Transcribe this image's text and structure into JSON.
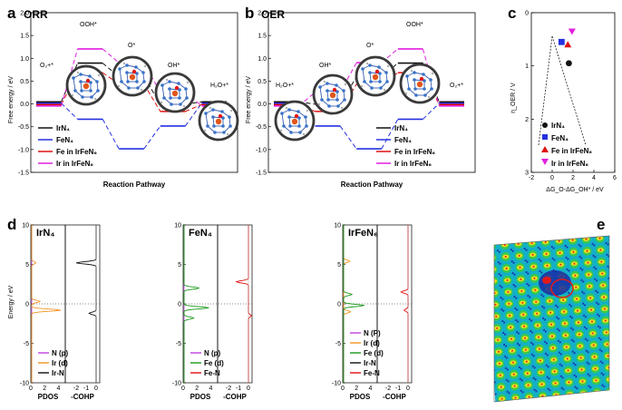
{
  "colors": {
    "black": "#111111",
    "blue": "#2430e0",
    "red": "#e01010",
    "magenta": "#e020e0",
    "green": "#1a9a1a",
    "orange": "#f29322",
    "violet": "#c040e0",
    "map_bg": "#13b0c8",
    "map_green": "#39c94a",
    "map_yellow": "#f0e020",
    "map_dark": "#1a2aa8",
    "map_red": "#e01a1a"
  },
  "panel_a": {
    "letter": "a",
    "title": "ORR",
    "xlabel": "Reaction Pathway",
    "ylabel": "Free energy / eV",
    "states": [
      "O₂+*",
      "OOH*",
      "O*",
      "OH*",
      "H₂O+*"
    ],
    "legend": [
      "IrN₄",
      "FeN₄",
      "Fe in IrFeN₆",
      "Ir in IrFeN₆"
    ],
    "legend_colors": [
      "#111111",
      "#2430e0",
      "#e01010",
      "#e020e0"
    ],
    "molecule_icons": [
      "molecule-structure-icon",
      "molecule-structure-icon",
      "molecule-structure-icon",
      "molecule-structure-icon"
    ]
  },
  "panel_b": {
    "letter": "b",
    "title": "OER",
    "xlabel": "Reaction Pathway",
    "ylabel": "Free energy / eV",
    "states": [
      "H₂O+*",
      "OH*",
      "O*",
      "OOH*",
      "O₂+*"
    ],
    "legend": [
      "IrN₄",
      "FeN₄",
      "Fe in IrFeN₆",
      "Ir in IrFeN₆"
    ],
    "legend_colors": [
      "#111111",
      "#2430e0",
      "#e01010",
      "#e020e0"
    ],
    "molecule_icons": [
      "molecule-structure-icon",
      "molecule-structure-icon",
      "molecule-structure-icon",
      "molecule-structure-icon"
    ]
  },
  "panel_c": {
    "letter": "c",
    "xlabel": "ΔG_O-ΔG_OH* / eV",
    "ylabel": "η_OER / V",
    "legend": [
      "IrN₄",
      "FeN₄",
      "Fe in IrFeN₆",
      "Ir in IrFeN₆"
    ],
    "legend_markers": [
      "circle",
      "square",
      "triangle-up",
      "triangle-down"
    ],
    "legend_colors": [
      "#111111",
      "#2430e0",
      "#e01010",
      "#e020e0"
    ]
  },
  "panel_d": {
    "letter": "d",
    "ylabel": "Energy / eV",
    "subpanels": [
      {
        "title": "IrN₄",
        "legend": [
          "N (p)",
          "Ir (d)",
          "Ir-N"
        ],
        "legend_colors": [
          "#c040e0",
          "#f29322",
          "#111111"
        ],
        "pdos_label": "PDOS",
        "cohp_label": "-COHP"
      },
      {
        "title": "FeN₄",
        "legend": [
          "N (p)",
          "Fe (d)",
          "Fe-N"
        ],
        "legend_colors": [
          "#c040e0",
          "#1a9a1a",
          "#e01010"
        ],
        "pdos_label": "PDOS",
        "cohp_label": "-COHP"
      },
      {
        "title": "IrFeN₆",
        "legend": [
          "N (P)",
          "Ir (d)",
          "Fe (d)",
          "Ir-N",
          "Fe-N"
        ],
        "legend_colors": [
          "#c040e0",
          "#f29322",
          "#1a9a1a",
          "#111111",
          "#e01010"
        ],
        "pdos_label": "PDOS",
        "cohp_label": "-COHP"
      }
    ]
  },
  "panel_e": {
    "letter": "e"
  },
  "chart_data": [
    {
      "type": "line",
      "panel": "a",
      "title": "ORR",
      "xlabel": "Reaction Pathway",
      "ylabel": "Free energy / eV",
      "categories": [
        "O₂+*",
        "OOH*",
        "O*",
        "OH*",
        "H₂O+*"
      ],
      "ylim": [
        -1.5,
        2.0
      ],
      "series": [
        {
          "name": "IrN₄",
          "values": [
            0.0,
            0.85,
            0.55,
            -0.05,
            0.0
          ]
        },
        {
          "name": "FeN₄",
          "values": [
            0.0,
            -0.35,
            -1.0,
            -0.5,
            0.0
          ]
        },
        {
          "name": "Fe in IrFeN₆",
          "values": [
            0.0,
            0.7,
            0.45,
            -0.15,
            0.0
          ]
        },
        {
          "name": "Ir in IrFeN₆",
          "values": [
            0.0,
            1.25,
            0.95,
            0.3,
            0.0
          ]
        }
      ]
    },
    {
      "type": "line",
      "panel": "b",
      "title": "OER",
      "xlabel": "Reaction Pathway",
      "ylabel": "Free energy / eV",
      "categories": [
        "H₂O+*",
        "OH*",
        "O*",
        "OOH*",
        "O₂+*"
      ],
      "ylim": [
        -1.5,
        2.0
      ],
      "series": [
        {
          "name": "IrN₄",
          "values": [
            0.0,
            -0.05,
            0.55,
            0.85,
            0.0
          ]
        },
        {
          "name": "FeN₄",
          "values": [
            0.0,
            -0.5,
            -1.0,
            -0.35,
            0.0
          ]
        },
        {
          "name": "Fe in IrFeN₆",
          "values": [
            0.0,
            -0.15,
            0.45,
            0.7,
            0.0
          ]
        },
        {
          "name": "Ir in IrFeN₆",
          "values": [
            0.0,
            0.3,
            0.95,
            1.25,
            0.0
          ]
        }
      ]
    },
    {
      "type": "scatter",
      "panel": "c",
      "xlabel": "ΔG_O-ΔG_OH* / eV",
      "ylabel": "η_OER / V",
      "xlim": [
        -2,
        6
      ],
      "ylim": [
        3,
        0
      ],
      "xticks": [
        -2,
        0,
        2,
        4,
        6
      ],
      "yticks": [
        0,
        1,
        2,
        3
      ],
      "series": [
        {
          "name": "IrN₄",
          "marker": "circle",
          "x": [
            1.6
          ],
          "y": [
            0.95
          ]
        },
        {
          "name": "FeN₄",
          "marker": "square",
          "x": [
            0.9
          ],
          "y": [
            0.55
          ]
        },
        {
          "name": "Fe in IrFeN₆",
          "marker": "triangle-up",
          "x": [
            1.5
          ],
          "y": [
            0.6
          ]
        },
        {
          "name": "Ir in IrFeN₆",
          "marker": "triangle-down",
          "x": [
            1.9
          ],
          "y": [
            0.35
          ]
        }
      ]
    },
    {
      "type": "line",
      "panel": "d",
      "ylabel": "Energy / eV",
      "ylim": [
        -10,
        10
      ],
      "yticks": [
        -10,
        -5,
        0,
        5,
        10
      ],
      "pdos_xticks": [
        0,
        2,
        4
      ],
      "cohp_xticks": [
        -2,
        -1,
        0
      ],
      "peaks": {
        "IrN4_Ir_d": [
          [
            0.6,
            5.2
          ],
          [
            4.2,
            -0.8
          ],
          [
            1.2,
            0.3
          ]
        ],
        "IrN4_IrN_cohp": [
          [
            -2.0,
            5.2
          ],
          [
            -0.7,
            -1.2
          ]
        ],
        "FeN4_Fe_d": [
          [
            2.2,
            2.0
          ],
          [
            3.6,
            -0.5
          ],
          [
            1.4,
            -1.8
          ]
        ],
        "FeN4_FeN_cohp": [
          [
            -1.2,
            2.8
          ],
          [
            0.3,
            -1.5
          ]
        ],
        "IrFeN6_Fe_d": [
          [
            3.0,
            -0.2
          ],
          [
            1.2,
            1.2
          ]
        ],
        "IrFeN6_Ir_d": [
          [
            0.9,
            5.4
          ],
          [
            1.0,
            -1.0
          ]
        ],
        "IrFeN6_FeN_cohp": [
          [
            -0.7,
            1.5
          ],
          [
            -0.4,
            -0.8
          ]
        ]
      }
    }
  ]
}
